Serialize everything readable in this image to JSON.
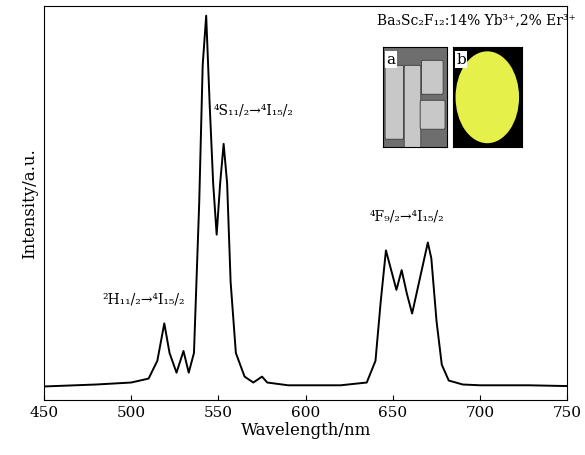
{
  "chart_data": {
    "type": "line",
    "x_label": "Wavelength/nm",
    "y_label": "Intensity/a.u.",
    "x": [
      450,
      480,
      500,
      510,
      515,
      519,
      522,
      526,
      530,
      533,
      536,
      539,
      541,
      543,
      545,
      547,
      549,
      551,
      553,
      555,
      557,
      560,
      565,
      570,
      575,
      578,
      590,
      620,
      635,
      640,
      643,
      646,
      649,
      652,
      655,
      658,
      661,
      664,
      667,
      670,
      672,
      675,
      678,
      682,
      690,
      700,
      728,
      750
    ],
    "values": [
      3.5,
      4,
      4.5,
      5.5,
      10,
      19.5,
      12,
      7,
      12.5,
      7,
      12,
      50,
      85,
      97.5,
      75,
      55,
      42,
      55,
      65,
      55,
      30,
      12,
      6,
      4.5,
      6,
      4.5,
      3.8,
      3.8,
      4.5,
      10,
      25,
      38,
      33,
      28,
      33,
      27,
      22,
      28,
      34,
      40,
      36,
      20,
      9,
      5,
      4,
      3.8,
      3.8,
      3.6
    ],
    "color": "#000000",
    "xlim": [
      450,
      750
    ],
    "xticks": [
      450,
      500,
      550,
      600,
      650,
      700,
      750
    ],
    "ylim": [
      0,
      100
    ],
    "yticks": [],
    "tick_labels": "x",
    "annotations": [
      {
        "text": "²H₁₁/₂→⁴I₁₅/₂",
        "x": 507,
        "y": 24
      },
      {
        "text": "⁴S₁₁/₂→⁴I₁₅/₂",
        "x": 570,
        "y": 72
      },
      {
        "text": "⁴F₉/₂→⁴I₁₅/₂",
        "x": 658,
        "y": 45
      }
    ],
    "inset_title": "Ba₃Sc₂F₁₂:14% Yb³⁺,2% Er³⁺",
    "inset_labels": [
      "a",
      "b"
    ]
  }
}
